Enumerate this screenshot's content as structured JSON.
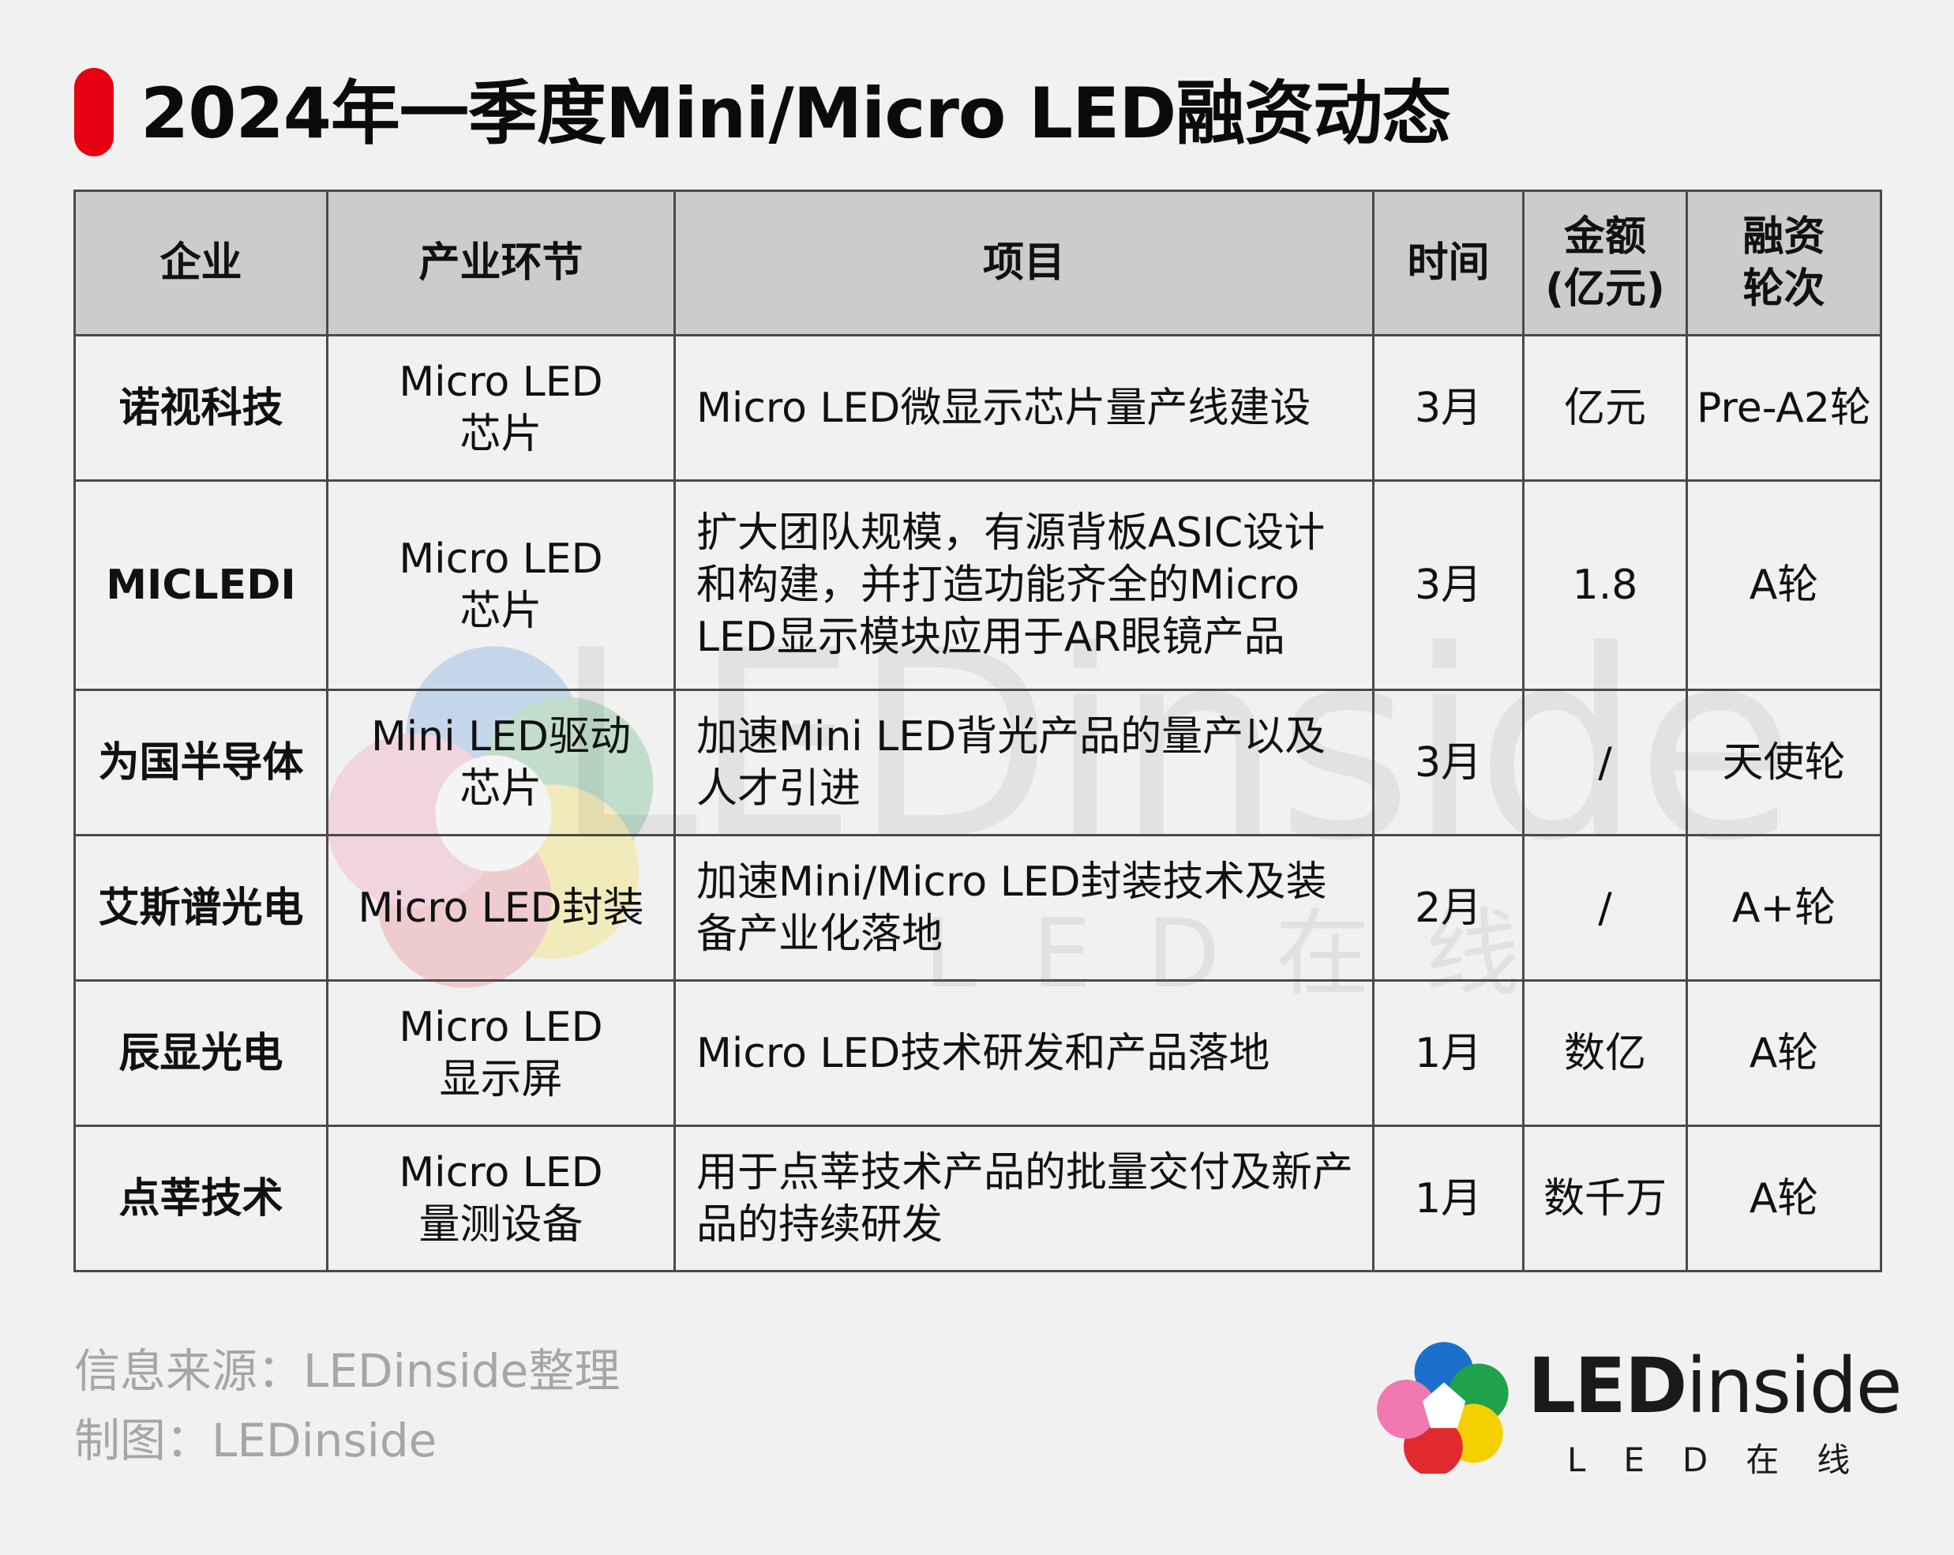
{
  "title": "2024年一季度Mini/Micro LED融资动态",
  "table": {
    "headers": {
      "company": "企业",
      "segment": "产业环节",
      "project": "项目",
      "time": "时间",
      "amount_l1": "金额",
      "amount_l2": "(亿元)",
      "round_l1": "融资",
      "round_l2": "轮次"
    },
    "rows": [
      {
        "company": "诺视科技",
        "segment_l1": "Micro LED",
        "segment_l2": "芯片",
        "project": "Micro LED微显示芯片量产线建设",
        "time": "3月",
        "amount": "亿元",
        "round": "Pre-A2轮"
      },
      {
        "company": "MICLEDI",
        "segment_l1": "Micro LED",
        "segment_l2": "芯片",
        "project": "扩大团队规模，有源背板ASIC设计和构建，并打造功能齐全的Micro LED显示模块应用于AR眼镜产品",
        "time": "3月",
        "amount": "1.8",
        "round": "A轮"
      },
      {
        "company": "为国半导体",
        "segment_l1": "Mini LED驱动",
        "segment_l2": "芯片",
        "project": "加速Mini LED背光产品的量产以及人才引进",
        "time": "3月",
        "amount": "/",
        "round": "天使轮"
      },
      {
        "company": "艾斯谱光电",
        "segment_l1": "Micro LED封装",
        "segment_l2": "",
        "project": "加速Mini/Micro LED封装技术及装备产业化落地",
        "time": "2月",
        "amount": "/",
        "round": "A+轮"
      },
      {
        "company": "辰显光电",
        "segment_l1": "Micro LED",
        "segment_l2": "显示屏",
        "project": "Micro LED技术研发和产品落地",
        "time": "1月",
        "amount": "数亿",
        "round": "A轮"
      },
      {
        "company": "点莘技术",
        "segment_l1": "Micro LED",
        "segment_l2": "量测设备",
        "project": "用于点莘技术产品的批量交付及新产品的持续研发",
        "time": "1月",
        "amount": "数千万",
        "round": "A轮"
      }
    ]
  },
  "footer": {
    "source": "信息来源：LEDinside整理",
    "credit": "制图：LEDinside"
  },
  "logo": {
    "name_bold": "LED",
    "name_light": "inside",
    "subtitle": "LED在线"
  },
  "watermark": {
    "text": "LEDinside",
    "subtitle": "LED在线"
  },
  "colors": {
    "accent": "#e60012",
    "header_bg": "#cccccc",
    "page_bg": "#f1f1f1",
    "footer_text": "#a6a6a6"
  }
}
